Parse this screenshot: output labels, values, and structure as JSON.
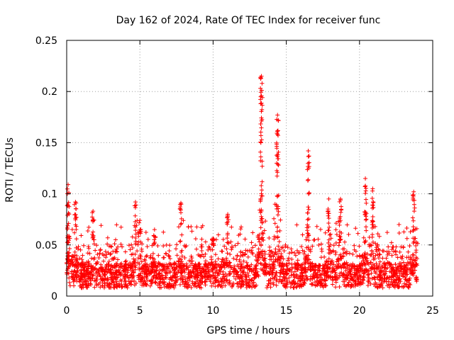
{
  "chart_data": {
    "type": "scatter",
    "title": "Day 162 of 2024, Rate Of TEC Index for receiver func",
    "xlabel": "GPS time / hours",
    "ylabel": "ROTI / TECUs",
    "xlim": [
      0,
      25
    ],
    "ylim": [
      0,
      0.25
    ],
    "xticks": [
      0,
      5,
      10,
      15,
      20,
      25
    ],
    "yticks": [
      0,
      0.05,
      0.1,
      0.15,
      0.2,
      0.25
    ],
    "xtick_labels": [
      "0",
      "5",
      "10",
      "15",
      "20",
      "25"
    ],
    "ytick_labels": [
      "0",
      "0.05",
      "0.1",
      "0.15",
      "0.2",
      "0.25"
    ],
    "grid": true,
    "marker": "+",
    "color": "#ff0000",
    "series": [
      {
        "name": "ROTI",
        "x_range": [
          0,
          24
        ],
        "baseline_typical": 0.02,
        "baseline_upper": 0.05,
        "peaks": [
          {
            "x": 0.1,
            "y": 0.109
          },
          {
            "x": 0.6,
            "y": 0.092
          },
          {
            "x": 1.8,
            "y": 0.083
          },
          {
            "x": 4.7,
            "y": 0.092
          },
          {
            "x": 5.0,
            "y": 0.074
          },
          {
            "x": 6.0,
            "y": 0.065
          },
          {
            "x": 7.8,
            "y": 0.091
          },
          {
            "x": 10.0,
            "y": 0.056
          },
          {
            "x": 11.0,
            "y": 0.08
          },
          {
            "x": 13.3,
            "y": 0.215
          },
          {
            "x": 14.4,
            "y": 0.177
          },
          {
            "x": 16.5,
            "y": 0.142
          },
          {
            "x": 17.9,
            "y": 0.095
          },
          {
            "x": 18.7,
            "y": 0.095
          },
          {
            "x": 20.4,
            "y": 0.115
          },
          {
            "x": 20.9,
            "y": 0.105
          },
          {
            "x": 23.7,
            "y": 0.102
          }
        ]
      }
    ]
  }
}
